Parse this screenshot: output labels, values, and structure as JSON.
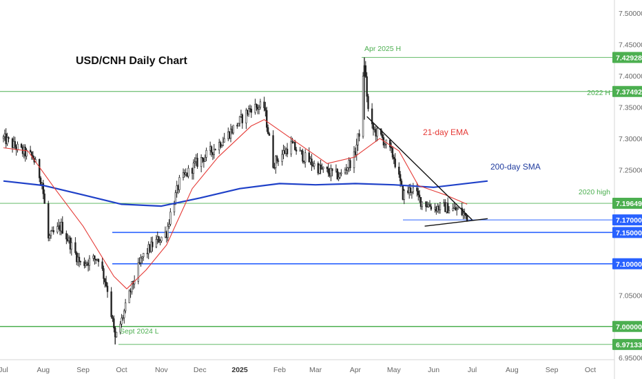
{
  "chart_data": {
    "type": "candlestick",
    "title": "USD/CNH Daily Chart",
    "ylim": [
      6.93,
      7.51
    ],
    "y_ticks": [
      "7.50000",
      "7.45000",
      "7.40000",
      "7.35000",
      "7.30000",
      "7.25000",
      "7.20000",
      "7.15000",
      "7.10000",
      "7.05000",
      "7.00000",
      "6.95000"
    ],
    "x_ticks": [
      {
        "label": "Jul",
        "date": "2024-07-01",
        "bold": false
      },
      {
        "label": "Aug",
        "date": "2024-08-01",
        "bold": false
      },
      {
        "label": "Sep",
        "date": "2024-09-01",
        "bold": false
      },
      {
        "label": "Oct",
        "date": "2024-10-01",
        "bold": false
      },
      {
        "label": "Nov",
        "date": "2024-11-01",
        "bold": false
      },
      {
        "label": "Dec",
        "date": "2024-12-01",
        "bold": false
      },
      {
        "label": "2025",
        "date": "2025-01-01",
        "bold": true
      },
      {
        "label": "Feb",
        "date": "2025-02-01",
        "bold": false
      },
      {
        "label": "Mar",
        "date": "2025-03-01",
        "bold": false
      },
      {
        "label": "Apr",
        "date": "2025-04-01",
        "bold": false
      },
      {
        "label": "May",
        "date": "2025-05-01",
        "bold": false
      },
      {
        "label": "Jun",
        "date": "2025-06-01",
        "bold": false
      },
      {
        "label": "Jul",
        "date": "2025-07-01",
        "bold": false
      },
      {
        "label": "Aug",
        "date": "2025-08-01",
        "bold": false
      },
      {
        "label": "Sep",
        "date": "2025-09-01",
        "bold": false
      },
      {
        "label": "Oct",
        "date": "2025-10-01",
        "bold": false
      }
    ],
    "price_path": [
      [
        "2024-07-01",
        7.3
      ],
      [
        "2024-07-15",
        7.28
      ],
      [
        "2024-07-24",
        7.27
      ],
      [
        "2024-07-31",
        7.23
      ],
      [
        "2024-08-05",
        7.14
      ],
      [
        "2024-08-15",
        7.16
      ],
      [
        "2024-08-30",
        7.1
      ],
      [
        "2024-09-13",
        7.11
      ],
      [
        "2024-09-20",
        7.06
      ],
      [
        "2024-09-26",
        6.98
      ],
      [
        "2024-10-01",
        7.01
      ],
      [
        "2024-10-10",
        7.07
      ],
      [
        "2024-10-17",
        7.11
      ],
      [
        "2024-10-25",
        7.13
      ],
      [
        "2024-11-05",
        7.15
      ],
      [
        "2024-11-08",
        7.18
      ],
      [
        "2024-11-15",
        7.23
      ],
      [
        "2024-11-28",
        7.26
      ],
      [
        "2024-12-10",
        7.28
      ],
      [
        "2024-12-20",
        7.3
      ],
      [
        "2025-01-02",
        7.33
      ],
      [
        "2025-01-10",
        7.35
      ],
      [
        "2025-01-20",
        7.35
      ],
      [
        "2025-01-27",
        7.26
      ],
      [
        "2025-02-10",
        7.29
      ],
      [
        "2025-02-20",
        7.27
      ],
      [
        "2025-03-05",
        7.25
      ],
      [
        "2025-03-20",
        7.24
      ],
      [
        "2025-03-31",
        7.27
      ],
      [
        "2025-04-04",
        7.31
      ],
      [
        "2025-04-08",
        7.42
      ],
      [
        "2025-04-12",
        7.32
      ],
      [
        "2025-04-22",
        7.3
      ],
      [
        "2025-05-01",
        7.27
      ],
      [
        "2025-05-08",
        7.21
      ],
      [
        "2025-05-15",
        7.22
      ],
      [
        "2025-05-22",
        7.2
      ],
      [
        "2025-06-01",
        7.19
      ],
      [
        "2025-06-10",
        7.19
      ],
      [
        "2025-06-20",
        7.185
      ],
      [
        "2025-06-27",
        7.175
      ]
    ],
    "ema_21": [
      [
        "2024-07-01",
        7.285
      ],
      [
        "2024-07-20",
        7.28
      ],
      [
        "2024-08-10",
        7.22
      ],
      [
        "2024-09-01",
        7.16
      ],
      [
        "2024-09-25",
        7.08
      ],
      [
        "2024-10-05",
        7.06
      ],
      [
        "2024-10-20",
        7.09
      ],
      [
        "2024-11-05",
        7.13
      ],
      [
        "2024-11-25",
        7.22
      ],
      [
        "2024-12-15",
        7.27
      ],
      [
        "2025-01-10",
        7.32
      ],
      [
        "2025-01-20",
        7.33
      ],
      [
        "2025-02-10",
        7.3
      ],
      [
        "2025-03-10",
        7.26
      ],
      [
        "2025-03-31",
        7.27
      ],
      [
        "2025-04-20",
        7.3
      ],
      [
        "2025-05-05",
        7.28
      ],
      [
        "2025-05-20",
        7.225
      ],
      [
        "2025-06-10",
        7.21
      ],
      [
        "2025-06-27",
        7.195
      ]
    ],
    "sma_200": [
      [
        "2024-07-01",
        7.232
      ],
      [
        "2024-08-01",
        7.225
      ],
      [
        "2024-09-01",
        7.21
      ],
      [
        "2024-10-01",
        7.195
      ],
      [
        "2024-11-01",
        7.192
      ],
      [
        "2024-12-01",
        7.205
      ],
      [
        "2025-01-01",
        7.22
      ],
      [
        "2025-02-01",
        7.228
      ],
      [
        "2025-03-01",
        7.226
      ],
      [
        "2025-04-01",
        7.228
      ],
      [
        "2025-05-01",
        7.226
      ],
      [
        "2025-06-01",
        7.222
      ],
      [
        "2025-07-13",
        7.232
      ]
    ],
    "horizontal_levels": [
      {
        "value": 7.42928,
        "label": "7.42928",
        "color": "#4caf50",
        "line": "thin"
      },
      {
        "value": 7.37492,
        "label": "7.37492",
        "color": "#4caf50",
        "line": "thin"
      },
      {
        "value": 7.19649,
        "label": "7.19649",
        "color": "#4caf50",
        "line": "thin"
      },
      {
        "value": 7.17,
        "label": "7.17000",
        "color": "#2962ff",
        "line": "thin"
      },
      {
        "value": 7.15,
        "label": "7.15000",
        "color": "#2962ff",
        "line": "thick"
      },
      {
        "value": 7.1,
        "label": "7.10000",
        "color": "#2962ff",
        "line": "thick"
      },
      {
        "value": 7.0,
        "label": "7.00000",
        "color": "#4caf50",
        "line": "thick"
      },
      {
        "value": 6.97133,
        "label": "6.97133",
        "color": "#4caf50",
        "line": "thin"
      }
    ],
    "trendlines": [
      {
        "from": [
          "2025-04-10",
          7.335
        ],
        "to": [
          "2025-07-01",
          7.17
        ]
      },
      {
        "from": [
          "2025-05-25",
          7.16
        ],
        "to": [
          "2025-07-13",
          7.172
        ]
      }
    ],
    "annotations": {
      "apr_high": "Apr 2025 H",
      "h2022": "2022 H",
      "ema": "21-day EMA",
      "sma": "200-day SMA",
      "high2020": "2020 high",
      "sept_low": "Sept 2024 L"
    },
    "colors": {
      "candles": "#222222",
      "ema": "#e53935",
      "sma": "#1e40c8",
      "green": "#4caf50",
      "blue": "#2962ff"
    }
  }
}
